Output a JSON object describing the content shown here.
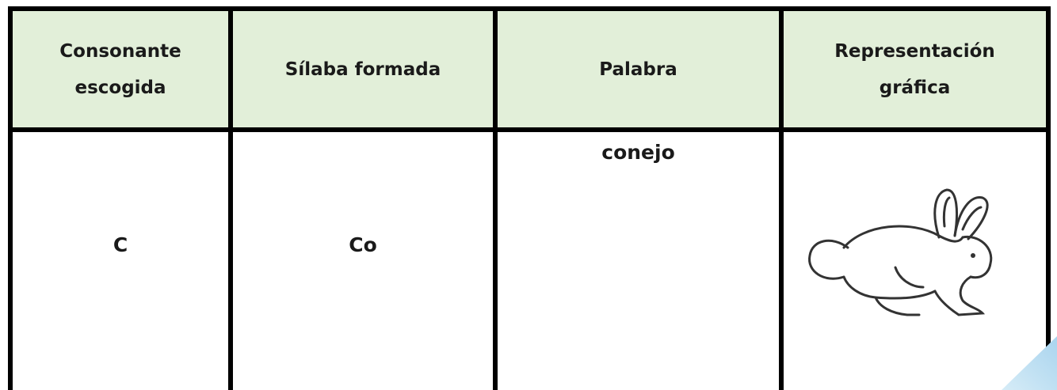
{
  "table": {
    "header": [
      "Consonante escogida",
      "Sílaba formada",
      "Palabra",
      "Representación gráfica"
    ],
    "rows": [
      [
        "C",
        "Co",
        "conejo"
      ]
    ]
  }
}
